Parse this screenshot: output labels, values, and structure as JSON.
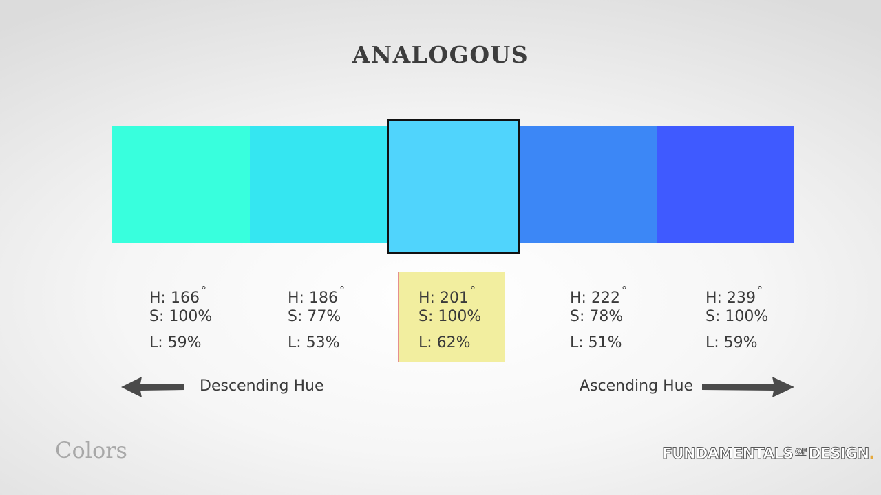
{
  "title": "ANALOGOUS",
  "swatches": [
    {
      "color": "#38ffdd",
      "h": "H: 166",
      "s": "S: 100%",
      "l": "L: 59%",
      "selected": false
    },
    {
      "color": "#35e6f1",
      "h": "H: 186",
      "s": "S: 77%",
      "l": "L: 53%",
      "selected": false
    },
    {
      "color": "#50d4fc",
      "h": "H: 201",
      "s": "S: 100%",
      "l": "L: 62%",
      "selected": true
    },
    {
      "color": "#3c87f6",
      "h": "H: 222",
      "s": "S: 78%",
      "l": "L: 51%",
      "selected": false
    },
    {
      "color": "#3f5aff",
      "h": "H: 239",
      "s": "S: 100%",
      "l": "L: 59%",
      "selected": false
    }
  ],
  "degree_symbol": "°",
  "descending_label": "Descending Hue",
  "ascending_label": "Ascending Hue",
  "footer_left": "Colors",
  "brand": {
    "part1": "FUNDAMENTALS",
    "part2": "OF",
    "part3": "DESIGN",
    "dot": "."
  },
  "colors": {
    "highlight_fill": "#f2ee9f",
    "highlight_border": "#e58f8f",
    "arrow": "#4a4a4a",
    "brand_dot": "#e6a93b"
  }
}
